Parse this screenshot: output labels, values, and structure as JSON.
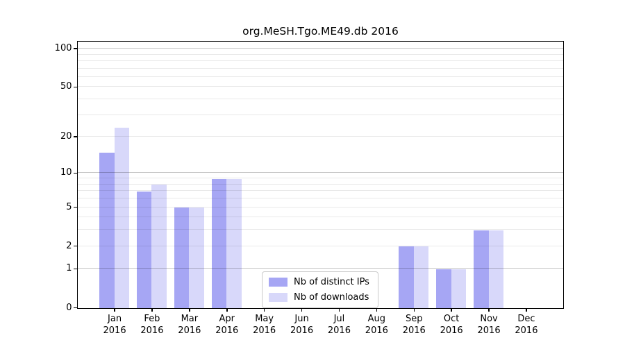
{
  "figure": {
    "background": "#ffffff"
  },
  "chart_data": {
    "type": "bar",
    "title": "org.MeSH.Tgo.ME49.db 2016",
    "year_label": "2016",
    "categories": [
      "Jan",
      "Feb",
      "Mar",
      "Apr",
      "May",
      "Jun",
      "Jul",
      "Aug",
      "Sep",
      "Oct",
      "Nov",
      "Dec"
    ],
    "series": [
      {
        "name": "Nb of distinct IPs",
        "color": "#a6a6f4",
        "values": [
          15,
          7,
          5,
          9,
          0,
          0,
          0,
          0,
          2,
          1,
          3,
          0
        ]
      },
      {
        "name": "Nb of downloads",
        "color": "#d8d8fa",
        "values": [
          24,
          8,
          5,
          9,
          0,
          0,
          0,
          0,
          2,
          1,
          3,
          0
        ]
      }
    ],
    "y_axis": {
      "scale": "log1p",
      "tick_labels": [
        "100",
        "50",
        "20",
        "10",
        "5",
        "2",
        "1",
        "0"
      ],
      "tick_values": [
        100,
        50,
        20,
        10,
        5,
        2,
        1,
        0
      ],
      "major_grid_values": [
        1,
        10,
        100
      ],
      "minor_grid_values": [
        2,
        3,
        4,
        5,
        6,
        7,
        8,
        9,
        20,
        30,
        40,
        50,
        60,
        70,
        80,
        90
      ]
    },
    "colors": {
      "major_grid": "rgba(0,0,0,0.22)",
      "minor_grid": "rgba(0,0,0,0.085)",
      "axis": "#000000",
      "text": "#000000"
    },
    "legend": {
      "position": "inside-bottom-center"
    }
  }
}
